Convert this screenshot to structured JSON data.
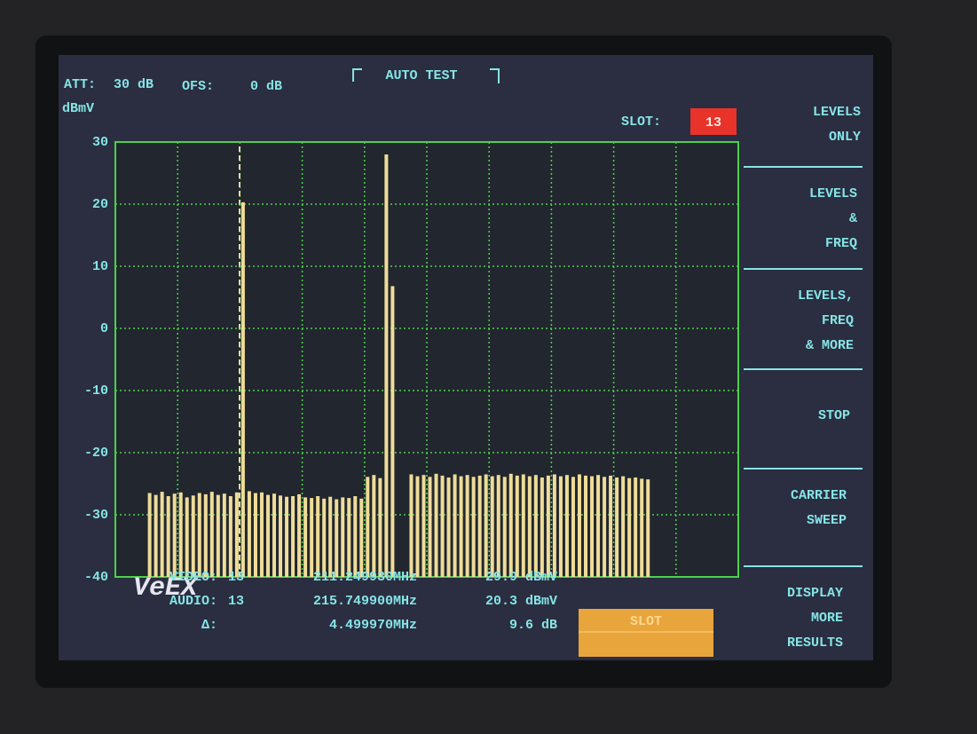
{
  "header": {
    "att_label": "ATT:",
    "att_value": "30 dB",
    "ofs_label": "OFS:",
    "ofs_value": "0 dB",
    "mode": "AUTO TEST",
    "slot_label": "SLOT:",
    "slot_value": "13"
  },
  "chart_data": {
    "type": "bar",
    "y_label": "dBmV",
    "color": "#eedc98",
    "grid": true,
    "ylim": [
      -40,
      30
    ],
    "yticks": [
      30,
      20,
      10,
      0,
      -10,
      -20,
      -30,
      -40
    ],
    "values": [
      null,
      null,
      null,
      null,
      null,
      -26.5,
      -26.8,
      -26.3,
      -27.0,
      -26.6,
      -26.4,
      -27.2,
      -26.9,
      -26.5,
      -26.7,
      -26.3,
      -26.8,
      -26.6,
      -27.0,
      -26.4,
      20.3,
      -26.2,
      -26.5,
      -26.4,
      -26.8,
      -26.6,
      -26.9,
      -27.1,
      -27.0,
      -26.7,
      -27.2,
      -27.3,
      -27.0,
      -27.4,
      -27.1,
      -27.5,
      -27.2,
      -27.3,
      -27.0,
      -27.4,
      -23.9,
      -23.6,
      -24.1,
      28.0,
      6.8,
      null,
      null,
      -23.5,
      -23.8,
      -23.6,
      -23.9,
      -23.4,
      -23.7,
      -24.0,
      -23.5,
      -23.8,
      -23.6,
      -23.9,
      -23.7,
      -23.5,
      -23.8,
      -23.6,
      -23.9,
      -23.4,
      -23.7,
      -23.5,
      -23.8,
      -23.6,
      -24.0,
      -23.7,
      -23.5,
      -23.8,
      -23.6,
      -23.9,
      -23.5,
      -23.7,
      -23.8,
      -23.6,
      -23.9,
      -23.7,
      -24.0,
      -23.8,
      -24.1,
      -24.0,
      -24.2,
      -24.3,
      null,
      null,
      null,
      null,
      null,
      null,
      null,
      null,
      null,
      null,
      null,
      null,
      null,
      null
    ]
  },
  "menu": {
    "items": [
      {
        "lines": [
          "LEVELS",
          "ONLY"
        ]
      },
      {
        "lines": [
          "LEVELS",
          "&",
          "FREQ"
        ]
      },
      {
        "lines": [
          "LEVELS,",
          "FREQ",
          "& MORE"
        ]
      },
      {
        "lines": [
          "STOP"
        ]
      },
      {
        "lines": [
          "CARRIER",
          "SWEEP"
        ]
      },
      {
        "lines": [
          "DISPLAY",
          "MORE",
          "RESULTS"
        ]
      }
    ]
  },
  "readout": {
    "logo": "VeEX",
    "rows": [
      [
        "VIDEO:",
        "13",
        "211.249930MHz",
        "29.9 dBmV"
      ],
      [
        "AUDIO:",
        "13",
        "215.749900MHz",
        "20.3 dBmV"
      ],
      [
        "Δ:",
        "",
        "4.499970MHz",
        "9.6 dB"
      ]
    ],
    "button": "SLOT"
  }
}
